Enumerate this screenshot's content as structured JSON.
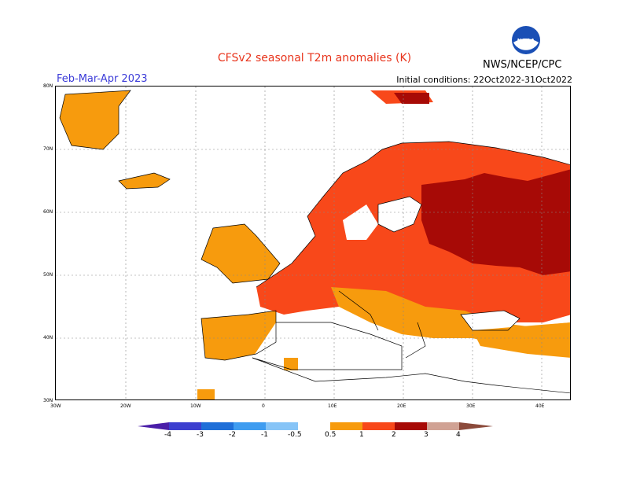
{
  "header": {
    "title": "CFSv2 seasonal T2m anomalies (K)",
    "period": "Feb-Mar-Apr 2023",
    "initial_conditions": "Initial conditions: 22Oct2022-31Oct2022",
    "agency": "NWS/NCEP/CPC",
    "logo_text": "NOAA"
  },
  "axes": {
    "lat_labels": [
      "80N",
      "70N",
      "60N",
      "50N",
      "40N",
      "30N"
    ],
    "lon_labels": [
      "30W",
      "20W",
      "10W",
      "0",
      "10E",
      "20E",
      "30E",
      "40E"
    ]
  },
  "legend": {
    "labels": [
      "-4",
      "-3",
      "-2",
      "-1",
      "-0.5",
      "0.5",
      "1",
      "2",
      "3",
      "4"
    ],
    "colors": {
      "below_-4": "#4a1ea8",
      "-4_-3": "#3c3fcf",
      "-3_-2": "#1f6fd8",
      "-2_-1": "#3e9cf0",
      "-1_-0.5": "#86c4f7",
      "-0.5_0.5": "#ffffff",
      "0.5_1": "#f79b0d",
      "1_2": "#f8481a",
      "2_3": "#a70a06",
      "3_4": "#d0a294",
      "above_4": "#8b4a3b"
    }
  }
}
